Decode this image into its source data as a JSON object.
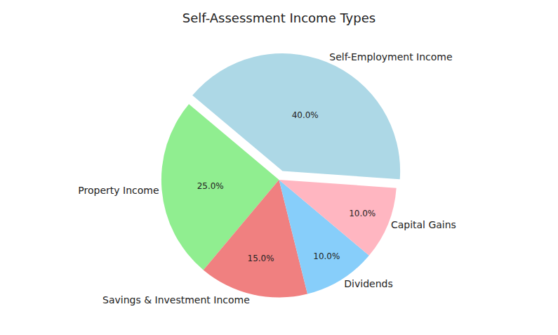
{
  "chart_data": {
    "type": "pie",
    "title": "Self-Assessment Income Types",
    "categories": [
      "Self-Employment Income",
      "Property Income",
      "Savings & Investment Income",
      "Dividends",
      "Capital Gains"
    ],
    "values": [
      40,
      25,
      15,
      10,
      10
    ],
    "value_labels": [
      "40.0%",
      "25.0%",
      "15.0%",
      "10.0%",
      "10.0%"
    ],
    "colors": [
      "#add8e6",
      "#90ee90",
      "#f08080",
      "#87cefa",
      "#ffb6c1"
    ],
    "data_labels": true
  }
}
